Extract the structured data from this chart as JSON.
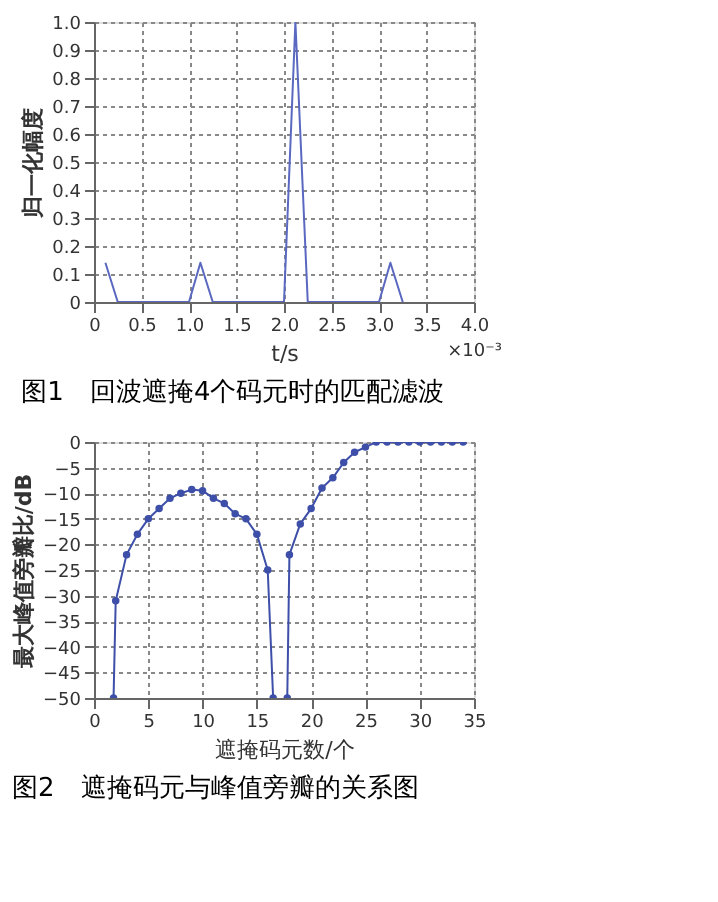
{
  "chart_data": [
    {
      "type": "line",
      "title": "图1　回波遮掩4个码元时的匹配滤波",
      "xlabel": "t/s",
      "ylabel": "归一化幅度",
      "annotations": [
        "×10⁻³"
      ],
      "x": [
        0.12,
        0.25,
        1.0,
        1.12,
        1.25,
        2.0,
        2.12,
        2.25,
        3.0,
        3.12,
        3.25
      ],
      "series": [
        {
          "color": "#5a68c0",
          "values": [
            0.14,
            0,
            0,
            0.14,
            0,
            0,
            1.0,
            0,
            0,
            0.14,
            0
          ]
        }
      ],
      "xlim": [
        0,
        4
      ],
      "xticks": [
        0,
        0.5,
        {
          "value": 1,
          "label": "1.0"
        },
        1.5,
        {
          "value": 2,
          "label": "2.0"
        },
        2.5,
        {
          "value": 3,
          "label": "3.0"
        },
        3.5,
        {
          "value": 4,
          "label": "4.0"
        }
      ],
      "ylim": [
        0,
        1
      ],
      "yticks": [
        0,
        0.1,
        0.2,
        0.3,
        0.4,
        0.5,
        0.6,
        0.7,
        0.8,
        0.9,
        {
          "value": 1,
          "label": "1.0"
        }
      ],
      "grid": true,
      "line_style": "solid",
      "marker": "none"
    },
    {
      "type": "line",
      "title": "图2　遮掩码元与峰值旁瓣的关系图",
      "xlabel": "遮掩码元数/个",
      "ylabel": "最大峰值旁瓣比/dB",
      "x": [
        1.8,
        2,
        3,
        4,
        5,
        6,
        7,
        8,
        9,
        10,
        11,
        12,
        13,
        14,
        15,
        16,
        16.5,
        17,
        17.8,
        18,
        19,
        20,
        21,
        22,
        23,
        24,
        25,
        26,
        27,
        28,
        29,
        30,
        31,
        32,
        33,
        34
      ],
      "series": [
        {
          "color": "#3d4fa8",
          "values": [
            -50,
            -31,
            -22,
            -18,
            -15,
            -13,
            -11,
            -10,
            -9.3,
            -9.5,
            -11,
            -12,
            -14,
            -15,
            -18,
            -25,
            -50,
            null,
            -50,
            -22,
            -16,
            -13,
            -9,
            -7,
            -4,
            -2,
            -1,
            0,
            0,
            0,
            0,
            0,
            0,
            0,
            0,
            0
          ]
        }
      ],
      "xlim": [
        0,
        35
      ],
      "xticks": [
        0,
        5,
        10,
        15,
        20,
        25,
        30,
        35
      ],
      "ylim": [
        -50,
        0
      ],
      "yticks": [
        -50,
        -45,
        -40,
        -35,
        -30,
        -25,
        -20,
        -15,
        -10,
        -5,
        0
      ],
      "grid": true,
      "line_style": "solid",
      "marker": "circle"
    }
  ]
}
